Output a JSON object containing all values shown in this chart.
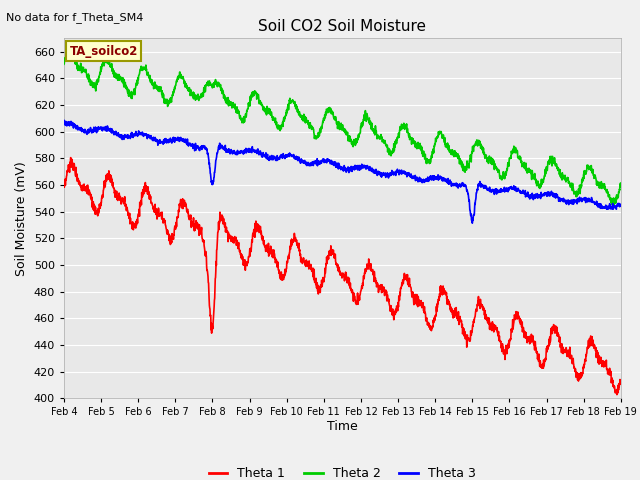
{
  "title": "Soil CO2 Soil Moisture",
  "subtitle": "No data for f_Theta_SM4",
  "xlabel": "Time",
  "ylabel": "Soil Moisture (mV)",
  "ylim": [
    400,
    670
  ],
  "xlim": [
    0,
    15
  ],
  "xtick_labels": [
    "Feb 4",
    "Feb 5",
    "Feb 6",
    "Feb 7",
    "Feb 8",
    "Feb 9",
    "Feb 10",
    "Feb 11",
    "Feb 12",
    "Feb 13",
    "Feb 14",
    "Feb 15",
    "Feb 16",
    "Feb 17",
    "Feb 18",
    "Feb 19"
  ],
  "annotation_box": "TA_soilco2",
  "bg_color": "#e8e8e8",
  "grid_color": "#ffffff",
  "theta1_color": "#ff0000",
  "theta2_color": "#00cc00",
  "theta3_color": "#0000ff",
  "line_width": 1.2
}
